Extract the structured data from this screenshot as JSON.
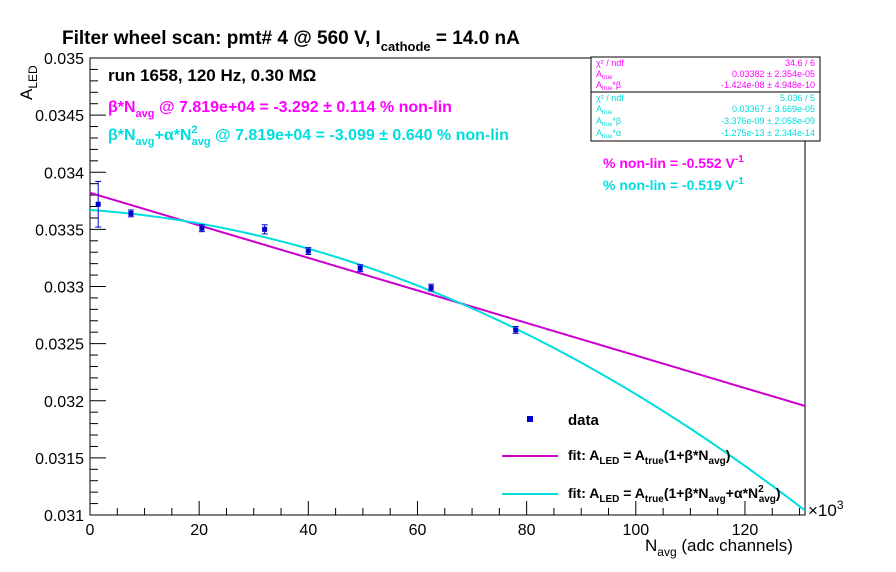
{
  "chart_data": {
    "type": "scatter",
    "title": {
      "main": "Filter wheel scan: pmt#   4 @   560 V, I",
      "sub": "cathode",
      "tail": " = 14.0 nA"
    },
    "run_label": "run 1658, 120 Hz, 0.30 MΩ",
    "line1": {
      "a": "β*N",
      "a_sub": "avg",
      "b": " @ 7.819e+04 = -3.292 ± 0.114 % non-lin"
    },
    "line2": {
      "a": "β*N",
      "a_sub": "avg",
      "b": "+α*N",
      "b_sup": "2",
      "b_sub": "avg",
      "c": " @ 7.819e+04 = -3.099 ± 0.640 % non-lin"
    },
    "nonlin1": {
      "text": "% non-lin = -0.552 V",
      "sup": "-1"
    },
    "nonlin2": {
      "text": "% non-lin = -0.519 V",
      "sup": "-1"
    },
    "xlabel": {
      "main": "N",
      "sub": "avg",
      "tail": " (adc channels)"
    },
    "ylabel": {
      "main": "A",
      "sub": "LED"
    },
    "x_multiplier": {
      "base": "×10",
      "exp": "3"
    },
    "xlim": [
      0,
      131000
    ],
    "ylim": [
      0.031,
      0.035
    ],
    "x_ticks": [
      0,
      20000,
      40000,
      60000,
      80000,
      100000,
      120000
    ],
    "x_tick_labels": [
      "0",
      "20",
      "40",
      "60",
      "80",
      "100",
      "120"
    ],
    "y_ticks": [
      0.031,
      0.0315,
      0.032,
      0.0325,
      0.033,
      0.0335,
      0.034,
      0.0345,
      0.035
    ],
    "y_tick_labels": [
      "0.031",
      "0.0315",
      "0.032",
      "0.0325",
      "0.033",
      "0.0335",
      "0.034",
      "0.0345",
      "0.035"
    ],
    "data": {
      "name": "data",
      "color": "#0000cc",
      "x": [
        1500,
        7500,
        20500,
        32000,
        40000,
        49500,
        62500,
        78000
      ],
      "y": [
        0.03372,
        0.03364,
        0.03351,
        0.0335,
        0.03331,
        0.03316,
        0.03299,
        0.03262
      ],
      "yerr": [
        0.0002,
        3e-05,
        3e-05,
        4e-05,
        3e-05,
        3e-05,
        3e-05,
        3e-05
      ]
    },
    "fit_linear": {
      "color": "#cc00cc",
      "a_true": 0.03382,
      "beta": -1.424e-08,
      "legend": {
        "a": "fit: A",
        "a_sub": "LED",
        "b": " = A",
        "b_sub": "true",
        "c": "(1+β*N",
        "c_sub": "avg",
        "d": ")"
      }
    },
    "fit_quadratic": {
      "color": "#00dddd",
      "a_true": 0.03367,
      "beta": -3.376e-09,
      "alpha": -1.275e-13,
      "legend": {
        "a": "fit: A",
        "a_sub": "LED",
        "b": " = A",
        "b_sub": "true",
        "c": "(1+β*N",
        "c_sub": "avg",
        "d": "+α*N",
        "d_sup": "2",
        "d_sub": "avg",
        "e": ")"
      }
    },
    "stats_linear": {
      "rows": [
        {
          "label": "χ² / ndf",
          "value": "34.6 / 6"
        },
        {
          "label": "A",
          "sub": "true",
          "value": "0.03382 ± 2.354e-05"
        },
        {
          "label": "A",
          "sub": "true",
          "tail": "*β",
          "value": "-1.424e-08 ± 4.948e-10"
        }
      ]
    },
    "stats_quadratic": {
      "rows": [
        {
          "label": "χ² / ndf",
          "value": "5.036 / 5"
        },
        {
          "label": "A",
          "sub": "true",
          "value": "0.03367 ± 3.669e-05"
        },
        {
          "label": "A",
          "sub": "true",
          "tail": "*β",
          "value": "-3.376e-09 ± 2.058e-09"
        },
        {
          "label": "A",
          "sub": "true",
          "tail": "*α",
          "value": "-1.275e-13 ± 2.344e-14"
        }
      ]
    }
  }
}
